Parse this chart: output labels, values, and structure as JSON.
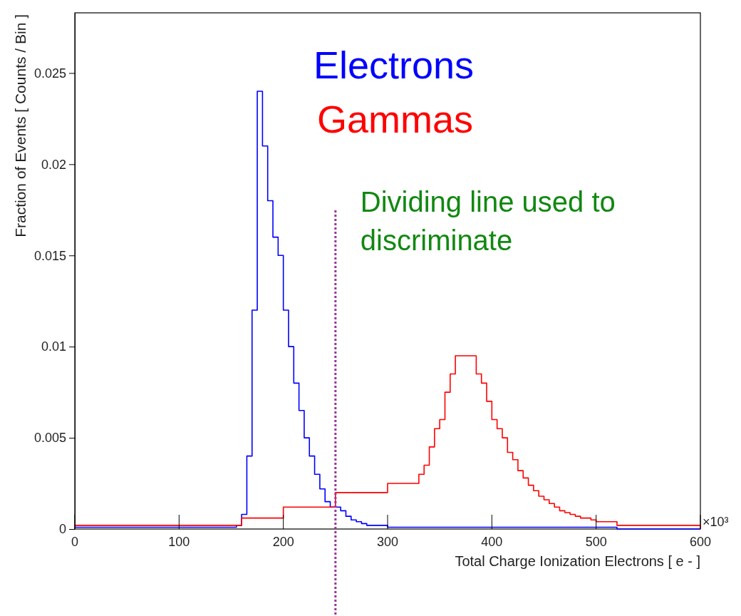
{
  "chart_data": {
    "type": "histogram",
    "xlabel": "Total Charge Ionization Electrons [ e - ]",
    "ylabel": "Fraction of Events [ Counts / Bin ]",
    "annotations": [
      "×10³"
    ],
    "bins": [
      0,
      5,
      10,
      15,
      20,
      25,
      30,
      35,
      40,
      45,
      50,
      55,
      60,
      65,
      70,
      75,
      80,
      85,
      90,
      95,
      100,
      105,
      110,
      115,
      120,
      125,
      130,
      135,
      140,
      145,
      150,
      155,
      160,
      165,
      170,
      175,
      180,
      185,
      190,
      195,
      200,
      205,
      210,
      215,
      220,
      225,
      230,
      235,
      240,
      245,
      250,
      255,
      260,
      265,
      270,
      275,
      280,
      285,
      290,
      295,
      300,
      305,
      310,
      315,
      320,
      325,
      330,
      335,
      340,
      345,
      350,
      355,
      360,
      365,
      370,
      375,
      380,
      385,
      390,
      395,
      400,
      405,
      410,
      415,
      420,
      425,
      430,
      435,
      440,
      445,
      450,
      455,
      460,
      465,
      470,
      475,
      480,
      485,
      490,
      495,
      500,
      505,
      510,
      515,
      520,
      525,
      530,
      535,
      540,
      545,
      550,
      555,
      560,
      565,
      570,
      575,
      580,
      585,
      590,
      595,
      600
    ],
    "series": [
      {
        "name": "Electrons",
        "color": "#0000ff",
        "values": [
          0.0001,
          0.0001,
          0.0001,
          0.0001,
          0.0001,
          0.0001,
          0.0001,
          0.0001,
          0.0001,
          0.0001,
          0.0001,
          0.0001,
          0.0001,
          0.0001,
          0.0001,
          0.0001,
          0.0001,
          0.0001,
          0.0001,
          0.0001,
          0.0001,
          0.0001,
          0.0001,
          0.0001,
          0.0001,
          0.0001,
          0.0001,
          0.0001,
          0.0001,
          0.0001,
          0.0001,
          0.0002,
          0.0008,
          0.004,
          0.012,
          0.024,
          0.021,
          0.018,
          0.016,
          0.015,
          0.012,
          0.01,
          0.008,
          0.0065,
          0.005,
          0.004,
          0.003,
          0.0022,
          0.0015,
          0.0012,
          0.0012,
          0.001,
          0.0007,
          0.0005,
          0.0004,
          0.0003,
          0.0002,
          0.0002,
          0.0002,
          0.0002,
          0.0001,
          0.0001,
          0.0001,
          0.0001,
          0.0001,
          0.0001,
          0.0001,
          0.0001,
          0.0001,
          0.0001,
          0.0001,
          0.0001,
          0.0001,
          0.0001,
          0.0001,
          0.0001,
          0.0001,
          0.0001,
          0.0001,
          0.0001,
          0.0001,
          0.0001,
          0.0001,
          0.0001,
          0.0001,
          0.0001,
          0.0001,
          0.0001,
          0.0001,
          0.0001,
          0.0001,
          0.0001,
          0.0001,
          0.0001,
          0.0001,
          0.0001,
          0.0001,
          0.0001,
          0.0001,
          0.0001,
          0.0001,
          0.0001,
          0.0001,
          0.0001,
          0,
          0,
          0,
          0,
          0,
          0,
          0,
          0,
          0,
          0,
          0,
          0,
          0,
          0,
          0,
          0
        ]
      },
      {
        "name": "Gammas",
        "color": "#ff0000",
        "values": [
          0.0002,
          0.0002,
          0.0002,
          0.0002,
          0.0002,
          0.0002,
          0.0002,
          0.0002,
          0.0002,
          0.0002,
          0.0002,
          0.0002,
          0.0002,
          0.0002,
          0.0002,
          0.0002,
          0.0002,
          0.0002,
          0.0002,
          0.0002,
          0.0002,
          0.0002,
          0.0002,
          0.0002,
          0.0002,
          0.0002,
          0.0002,
          0.0002,
          0.0002,
          0.0002,
          0.0002,
          0.0002,
          0.0006,
          0.0006,
          0.0006,
          0.0006,
          0.0006,
          0.0006,
          0.0006,
          0.0006,
          0.0012,
          0.0012,
          0.0012,
          0.0012,
          0.0012,
          0.0012,
          0.0012,
          0.0012,
          0.0012,
          0.0012,
          0.002,
          0.002,
          0.002,
          0.002,
          0.002,
          0.002,
          0.002,
          0.002,
          0.002,
          0.002,
          0.0025,
          0.0025,
          0.0025,
          0.0025,
          0.0025,
          0.0025,
          0.003,
          0.0035,
          0.0045,
          0.0055,
          0.006,
          0.0075,
          0.0085,
          0.0095,
          0.0095,
          0.0095,
          0.0095,
          0.0085,
          0.008,
          0.007,
          0.006,
          0.0055,
          0.005,
          0.0042,
          0.0038,
          0.0032,
          0.0028,
          0.0024,
          0.0021,
          0.0018,
          0.0016,
          0.0014,
          0.0012,
          0.001,
          0.0009,
          0.0008,
          0.0007,
          0.0006,
          0.0006,
          0.0005,
          0.0004,
          0.0004,
          0.0004,
          0.0004,
          0.0002,
          0.0002,
          0.0002,
          0.0002,
          0.0002,
          0.0002,
          0.0002,
          0.0002,
          0.0002,
          0.0002,
          0.0002,
          0.0002,
          0.0002,
          0.0002,
          0.0002,
          0.0002
        ]
      }
    ],
    "xlim": [
      0,
      600
    ],
    "xticks": [
      0,
      100,
      200,
      300,
      400,
      500,
      600
    ],
    "ylim": [
      0,
      0.0283
    ],
    "yticks": [
      0,
      0.005,
      0.01,
      0.015,
      0.02,
      0.025
    ],
    "ref_lines": [
      {
        "axis": "x",
        "value": 250,
        "label": "Dividing line used to discriminate",
        "color": "#993399",
        "line_style": "dotted"
      }
    ],
    "legend": "top",
    "grid": false
  }
}
